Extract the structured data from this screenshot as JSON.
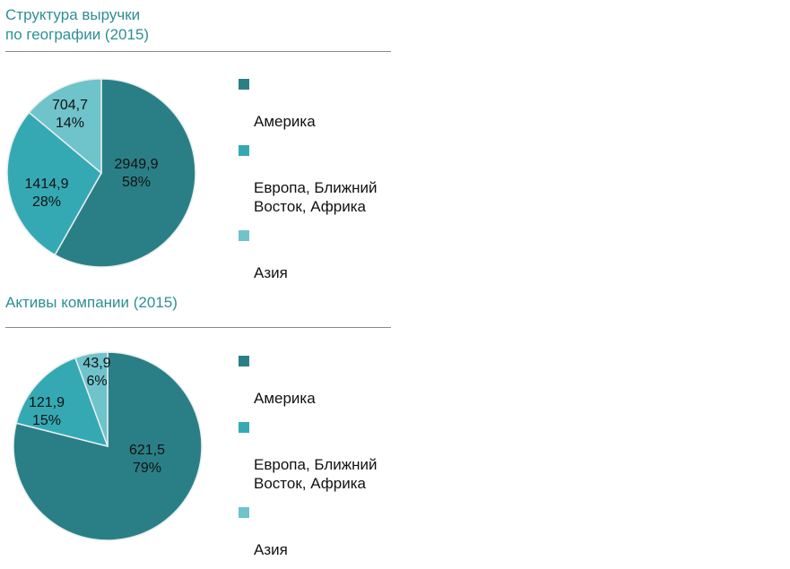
{
  "chart_data": [
    {
      "type": "pie",
      "title": "Структура выручки\nпо географии (2015)",
      "categories": [
        "Америка",
        "Европа, Ближний Восток, Африка",
        "Азия"
      ],
      "values": [
        2949.9,
        1414.9,
        704.7
      ],
      "value_labels": [
        "2949,9",
        "1414,9",
        "704,7"
      ],
      "percent_labels": [
        "58%",
        "28%",
        "14%"
      ],
      "colors": [
        "#2a7f86",
        "#35a9b3",
        "#6fc3cb"
      ],
      "legend": [
        "Америка",
        "Европа, Ближний\nВосток, Африка",
        "Азия"
      ],
      "legend_position": "right"
    },
    {
      "type": "pie",
      "title": "Активы компании (2015)",
      "categories": [
        "Америка",
        "Европа, Ближний Восток, Африка",
        "Азия"
      ],
      "values": [
        621.5,
        121.9,
        43.9
      ],
      "value_labels": [
        "621,5",
        "121,9",
        "43,9"
      ],
      "percent_labels": [
        "79%",
        "15%",
        "6%"
      ],
      "colors": [
        "#2a7f86",
        "#35a9b3",
        "#6fc3cb"
      ],
      "legend": [
        "Америка",
        "Европа, Ближний\nВосток, Африка",
        "Азия"
      ],
      "legend_position": "right"
    }
  ]
}
